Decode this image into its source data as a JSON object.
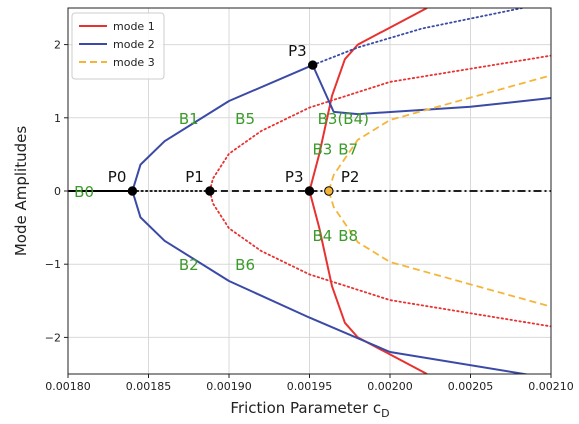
{
  "chart_data": {
    "type": "line",
    "xlabel": "Friction Parameter c",
    "xlabel_sub": "D",
    "ylabel": "Mode Amplitudes",
    "xlim": [
      0.0018,
      0.0021
    ],
    "ylim": [
      -2.5,
      2.5
    ],
    "xticks": [
      0.0018,
      0.00185,
      0.0019,
      0.00195,
      0.002,
      0.00205,
      0.0021
    ],
    "xtick_labels": [
      "0.00180",
      "0.00185",
      "0.00190",
      "0.00195",
      "0.00200",
      "0.00205",
      "0.00210"
    ],
    "yticks": [
      2,
      1,
      0,
      -1,
      -2
    ],
    "ytick_labels": [
      "2",
      "1",
      "0",
      "−1",
      "−2"
    ],
    "grid": true,
    "legend_position": "top-left",
    "legend": [
      {
        "name": "mode 1",
        "color": "#e83232",
        "dash": "solid"
      },
      {
        "name": "mode 2",
        "color": "#3a4aa6",
        "dash": "solid"
      },
      {
        "name": "mode 3",
        "color": "#f5b53a",
        "dash": "dashed"
      }
    ],
    "series": [
      {
        "mode": "mode 1",
        "color": "#e83232",
        "style": "solid",
        "points": [
          [
            0.002023,
            2.5
          ],
          [
            0.00198,
            2.0
          ],
          [
            0.001972,
            1.8
          ],
          [
            0.001964,
            1.3
          ],
          [
            0.00196,
            0.9
          ],
          [
            0.001956,
            0.5
          ],
          [
            0.00195,
            0.0
          ],
          [
            0.001956,
            -0.5
          ],
          [
            0.00196,
            -0.9
          ],
          [
            0.001964,
            -1.3
          ],
          [
            0.001972,
            -1.8
          ],
          [
            0.00198,
            -2.0
          ],
          [
            0.002023,
            -2.5
          ]
        ]
      },
      {
        "mode": "mode 1",
        "color": "#e83232",
        "style": "dotted",
        "points": [
          [
            0.00188812,
            0.0
          ],
          [
            0.00189,
            -0.17
          ],
          [
            0.0019,
            -0.51
          ],
          [
            0.00192,
            -0.82
          ],
          [
            0.00195,
            -1.14
          ],
          [
            0.002,
            -1.49
          ],
          [
            0.0021,
            -1.85
          ]
        ]
      },
      {
        "mode": "mode 1",
        "color": "#e83232",
        "style": "dotted",
        "points": [
          [
            0.00188812,
            0.0
          ],
          [
            0.00189,
            0.17
          ],
          [
            0.0019,
            0.51
          ],
          [
            0.00192,
            0.82
          ],
          [
            0.00195,
            1.14
          ],
          [
            0.002,
            1.49
          ],
          [
            0.0021,
            1.85
          ]
        ]
      },
      {
        "mode": "mode 2",
        "color": "#3a4aa6",
        "style": "solid",
        "points": [
          [
            0.0021,
            -2.56
          ],
          [
            0.002,
            -2.2
          ],
          [
            0.00195,
            -1.73
          ],
          [
            0.0019,
            -1.23
          ],
          [
            0.00186,
            -0.68
          ],
          [
            0.001845,
            -0.36
          ],
          [
            0.00184,
            0.0
          ],
          [
            0.001845,
            0.36
          ],
          [
            0.00186,
            0.68
          ],
          [
            0.0019,
            1.23
          ],
          [
            0.001952,
            1.72
          ],
          [
            0.001965,
            1.08
          ],
          [
            0.00198,
            1.05
          ],
          [
            0.00205,
            1.15
          ],
          [
            0.0021,
            1.27
          ]
        ]
      },
      {
        "mode": "mode 2",
        "color": "#3a4aa6",
        "style": "dotted",
        "points": [
          [
            0.001952,
            1.72
          ],
          [
            0.00198,
            1.96
          ],
          [
            0.00202,
            2.22
          ],
          [
            0.0021,
            2.58
          ]
        ]
      },
      {
        "mode": "mode 3",
        "color": "#f5b53a",
        "style": "dashed",
        "points": [
          [
            0.001962,
            0.0
          ],
          [
            0.001965,
            0.22
          ],
          [
            0.00198,
            0.7
          ],
          [
            0.002,
            0.97
          ],
          [
            0.0021,
            1.58
          ]
        ]
      },
      {
        "mode": "mode 3",
        "color": "#f5b53a",
        "style": "dashed",
        "points": [
          [
            0.001962,
            0.0
          ],
          [
            0.001965,
            -0.22
          ],
          [
            0.00198,
            -0.7
          ],
          [
            0.002,
            -0.97
          ],
          [
            0.0021,
            -1.58
          ]
        ]
      },
      {
        "mode": "trivial",
        "color": "#000000",
        "style": "solid",
        "points": [
          [
            0.0018,
            0.0
          ],
          [
            0.00184,
            0.0
          ]
        ]
      },
      {
        "mode": "trivial",
        "color": "#000000",
        "style": "dotted",
        "points": [
          [
            0.00184,
            0.0
          ],
          [
            0.00188812,
            0.0
          ]
        ]
      },
      {
        "mode": "trivial",
        "color": "#000000",
        "style": "dashed",
        "points": [
          [
            0.00188812,
            0.0
          ],
          [
            0.00195,
            0.0
          ]
        ]
      },
      {
        "mode": "trivial",
        "color": "#000000",
        "style": "dashdot",
        "points": [
          [
            0.00195,
            0.0
          ],
          [
            0.0021,
            0.0
          ]
        ]
      }
    ],
    "points": [
      {
        "label": "P0",
        "x": 0.00184,
        "y": 0.0,
        "fill": "#000000"
      },
      {
        "label": "P1",
        "x": 0.00188812,
        "y": 0.0,
        "fill": "#000000"
      },
      {
        "label": "P3",
        "x": 0.00195,
        "y": 0.0,
        "fill": "#000000"
      },
      {
        "label": "P2",
        "x": 0.001962,
        "y": 0.0,
        "fill": "#f5b53a"
      },
      {
        "label": "P3",
        "x": 0.001952,
        "y": 1.72,
        "fill": "#000000"
      }
    ],
    "annotations": [
      {
        "text": "B0",
        "x": 0.00181,
        "y": 0.0
      },
      {
        "text": "B1",
        "x": 0.001875,
        "y": 1.0
      },
      {
        "text": "B2",
        "x": 0.001875,
        "y": -1.0
      },
      {
        "text": "B5",
        "x": 0.00191,
        "y": 1.0
      },
      {
        "text": "B6",
        "x": 0.00191,
        "y": -1.0
      },
      {
        "text": "B3(B4)",
        "x": 0.001971,
        "y": 1.0
      },
      {
        "text": "B3",
        "x": 0.001958,
        "y": 0.58
      },
      {
        "text": "B4",
        "x": 0.001958,
        "y": -0.6
      },
      {
        "text": "B7",
        "x": 0.001974,
        "y": 0.58
      },
      {
        "text": "B8",
        "x": 0.001974,
        "y": -0.6
      }
    ]
  }
}
